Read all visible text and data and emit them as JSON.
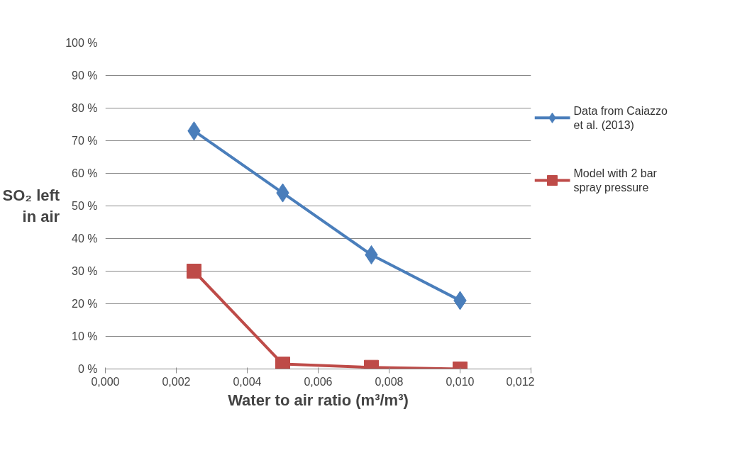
{
  "chart_data": {
    "type": "line",
    "xlabel": "Water to air ratio (m³/m³)",
    "ylabel": "SO₂ left in air",
    "x": [
      0.0025,
      0.005,
      0.0075,
      0.01
    ],
    "series": [
      {
        "name": "Data from Caiazzo et al. (2013)",
        "color": "#4a7ebb",
        "marker": "diamond",
        "values": [
          73,
          54,
          35,
          21
        ]
      },
      {
        "name": "Model with 2 bar spray pressure",
        "color": "#be4b48",
        "marker": "square",
        "values": [
          30,
          1.5,
          0.5,
          0
        ]
      }
    ],
    "xlim": [
      0,
      0.012
    ],
    "xticks": [
      {
        "value": 0,
        "label": "0,000"
      },
      {
        "value": 0.002,
        "label": "0,002"
      },
      {
        "value": 0.004,
        "label": "0,004"
      },
      {
        "value": 0.006,
        "label": "0,006"
      },
      {
        "value": 0.008,
        "label": "0,008"
      },
      {
        "value": 0.01,
        "label": "0,010"
      },
      {
        "value": 0.012,
        "label": "0,012"
      }
    ],
    "ylim": [
      0,
      100
    ],
    "yticks": [
      {
        "value": 0,
        "label": "0 %"
      },
      {
        "value": 10,
        "label": "10 %"
      },
      {
        "value": 20,
        "label": "20 %"
      },
      {
        "value": 30,
        "label": "30 %"
      },
      {
        "value": 40,
        "label": "40 %"
      },
      {
        "value": 50,
        "label": "50 %"
      },
      {
        "value": 60,
        "label": "60 %"
      },
      {
        "value": 70,
        "label": "70 %"
      },
      {
        "value": 80,
        "label": "80 %"
      },
      {
        "value": 90,
        "label": "90 %"
      },
      {
        "value": 100,
        "label": "100 %"
      }
    ],
    "grid": "y",
    "legend": "right",
    "line_style": "solid"
  }
}
